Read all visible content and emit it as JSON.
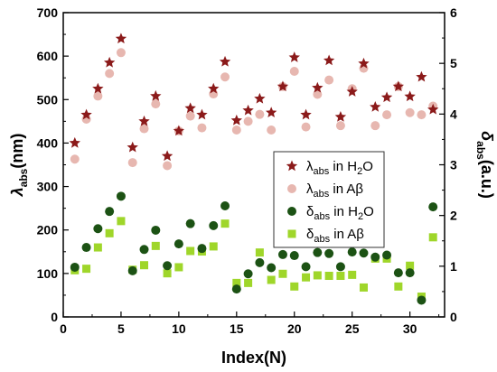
{
  "chart_data": {
    "type": "scatter",
    "xlabel": "Index(N)",
    "ylabel_left": {
      "main": "λ",
      "sub": "abs",
      "unit": "(nm)"
    },
    "ylabel_right": {
      "main": "δ",
      "sub": "abs",
      "unit": "(a.u.)"
    },
    "xlim": [
      0,
      33
    ],
    "ylim_left": [
      0,
      700
    ],
    "ylim_right": [
      0,
      6
    ],
    "x_ticks": [
      0,
      5,
      10,
      15,
      20,
      25,
      30
    ],
    "y_left_ticks": [
      0,
      100,
      200,
      300,
      400,
      500,
      600,
      700
    ],
    "y_right_ticks": [
      0,
      1,
      2,
      3,
      4,
      5,
      6
    ],
    "legend_position": "center-right",
    "series": [
      {
        "name": "λabs in H2O",
        "legend": {
          "main": "λ",
          "sub": "abs",
          "rest": " in H",
          "sub2": "2",
          "tail": "O"
        },
        "axis": "left",
        "marker": "star",
        "color": "#8b1a1a",
        "x": [
          1,
          2,
          3,
          4,
          5,
          6,
          7,
          8,
          9,
          10,
          11,
          12,
          13,
          14,
          15,
          16,
          17,
          18,
          19,
          20,
          21,
          22,
          23,
          24,
          25,
          26,
          27,
          28,
          29,
          30,
          31,
          32
        ],
        "values": [
          400,
          465,
          525,
          585,
          640,
          390,
          450,
          508,
          370,
          428,
          480,
          465,
          525,
          587,
          452,
          475,
          502,
          470,
          530,
          597,
          465,
          527,
          590,
          460,
          518,
          583,
          483,
          505,
          530,
          507,
          552,
          477
        ]
      },
      {
        "name": "λabs in Aβ",
        "legend": {
          "main": "λ",
          "sub": "abs",
          "rest": " in Aβ",
          "sub2": "",
          "tail": ""
        },
        "axis": "left",
        "marker": "circle",
        "color": "#e7b7b0",
        "x": [
          1,
          2,
          3,
          4,
          5,
          6,
          7,
          8,
          9,
          10,
          11,
          12,
          13,
          14,
          15,
          16,
          17,
          18,
          19,
          20,
          21,
          22,
          23,
          24,
          25,
          26,
          27,
          28,
          29,
          30,
          31,
          32
        ],
        "values": [
          363,
          455,
          508,
          560,
          608,
          355,
          433,
          490,
          348,
          428,
          462,
          435,
          513,
          552,
          430,
          450,
          466,
          430,
          530,
          565,
          437,
          512,
          545,
          440,
          525,
          572,
          440,
          465,
          530,
          470,
          465,
          485
        ]
      },
      {
        "name": "δabs in H2O",
        "legend": {
          "main": "δ",
          "sub": "abs",
          "rest": " in H",
          "sub2": "2",
          "tail": "O"
        },
        "axis": "right",
        "marker": "circle",
        "color": "#1c5214",
        "x": [
          1,
          2,
          3,
          4,
          5,
          6,
          7,
          8,
          9,
          10,
          11,
          12,
          13,
          14,
          15,
          16,
          17,
          18,
          19,
          20,
          21,
          22,
          23,
          24,
          25,
          26,
          27,
          28,
          29,
          30,
          31,
          32
        ],
        "values": [
          0.98,
          1.37,
          1.74,
          2.08,
          2.38,
          0.91,
          1.33,
          1.71,
          1.01,
          1.44,
          1.84,
          1.35,
          1.8,
          2.19,
          0.55,
          0.85,
          1.07,
          0.97,
          1.23,
          1.21,
          0.99,
          1.27,
          1.25,
          0.99,
          1.28,
          1.26,
          1.18,
          1.22,
          0.87,
          0.87,
          0.33,
          2.17
        ]
      },
      {
        "name": "δabs in Aβ",
        "legend": {
          "main": "δ",
          "sub": "abs",
          "rest": " in Aβ",
          "sub2": "",
          "tail": ""
        },
        "axis": "right",
        "marker": "square",
        "color": "#9fd62a",
        "x": [
          1,
          2,
          3,
          4,
          5,
          6,
          7,
          8,
          9,
          10,
          11,
          12,
          13,
          14,
          15,
          16,
          17,
          18,
          19,
          20,
          21,
          22,
          23,
          24,
          25,
          26,
          27,
          28,
          29,
          30,
          31,
          32
        ],
        "values": [
          0.92,
          0.95,
          1.37,
          1.65,
          1.89,
          0.93,
          1.02,
          1.4,
          0.86,
          0.98,
          1.3,
          1.29,
          1.39,
          1.84,
          0.67,
          0.67,
          1.27,
          0.73,
          0.85,
          0.6,
          0.78,
          0.82,
          0.81,
          0.81,
          0.83,
          0.58,
          1.15,
          1.15,
          0.6,
          1.01,
          0.4,
          1.57
        ]
      }
    ]
  }
}
